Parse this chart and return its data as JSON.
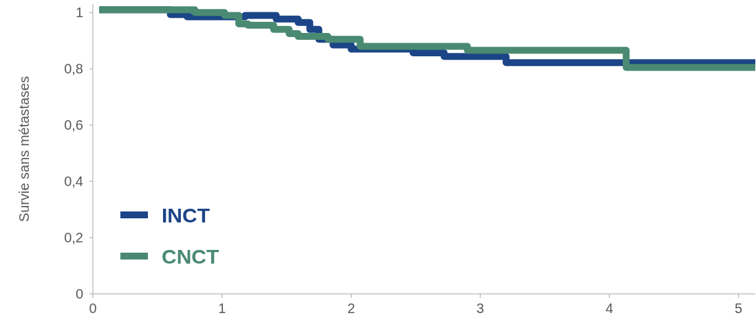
{
  "chart_data": {
    "type": "step",
    "ylabel": "Survie sans métastases",
    "xlim": [
      0,
      5.13
    ],
    "xticks": [
      0,
      1,
      2,
      3,
      4,
      5
    ],
    "ylim": [
      0,
      1.03
    ],
    "yticks": [
      0,
      {
        "value": 0.2,
        "label": "0,2"
      },
      {
        "value": 0.4,
        "label": "0,4"
      },
      {
        "value": 0.6,
        "label": "0,6"
      },
      {
        "value": 0.8,
        "label": "0,8"
      },
      1
    ],
    "grid": false,
    "legend": "bottom left",
    "line_style": "solid",
    "marker": "none",
    "series": [
      {
        "name": "INCT",
        "color": "#1c4587",
        "x": [
          0.05,
          0.6,
          0.73,
          1.18,
          1.42,
          1.59,
          1.68,
          1.75,
          1.86,
          2.0,
          2.48,
          2.72,
          3.2,
          5.13
        ],
        "values": [
          1.01,
          0.993,
          0.985,
          0.99,
          0.977,
          0.965,
          0.94,
          0.905,
          0.885,
          0.87,
          0.857,
          0.844,
          0.822,
          0.822
        ]
      },
      {
        "name": "CNCT",
        "color": "#4a8a72",
        "x": [
          0.05,
          0.79,
          1.02,
          1.13,
          1.2,
          1.4,
          1.52,
          1.59,
          1.82,
          2.07,
          2.9,
          4.13,
          5.13
        ],
        "values": [
          1.01,
          1.0,
          0.99,
          0.96,
          0.955,
          0.94,
          0.925,
          0.915,
          0.905,
          0.88,
          0.866,
          0.805,
          0.805
        ]
      }
    ]
  }
}
